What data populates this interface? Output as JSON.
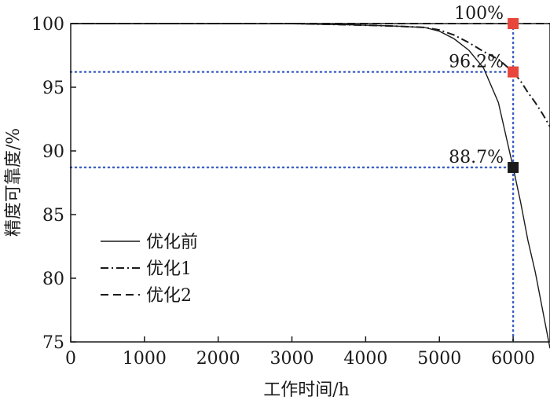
{
  "chart_data": {
    "type": "line",
    "title": "",
    "xlabel": "工作时间/h",
    "ylabel": "精度可靠度/%",
    "xlim": [
      0,
      6500
    ],
    "ylim": [
      75,
      100
    ],
    "x_ticks": [
      "0",
      "1000",
      "2000",
      "3000",
      "4000",
      "5000",
      "6000"
    ],
    "y_ticks": [
      "75",
      "80",
      "85",
      "90",
      "95",
      "100"
    ],
    "grid": false,
    "legend_position": "lower-left",
    "series": [
      {
        "name": "优化前",
        "style": "solid",
        "points": [
          [
            0,
            100
          ],
          [
            2000,
            100
          ],
          [
            3000,
            99.99
          ],
          [
            3800,
            99.9
          ],
          [
            4400,
            99.8
          ],
          [
            4800,
            99.7
          ],
          [
            5000,
            99.4
          ],
          [
            5200,
            98.8
          ],
          [
            5400,
            97.9
          ],
          [
            5600,
            96.5
          ],
          [
            5800,
            93.8
          ],
          [
            6000,
            88.7
          ],
          [
            6100,
            86.0
          ],
          [
            6200,
            83.0
          ],
          [
            6300,
            80.5
          ],
          [
            6400,
            77.5
          ],
          [
            6500,
            74.5
          ]
        ]
      },
      {
        "name": "优化1",
        "style": "dashdot",
        "points": [
          [
            0,
            100
          ],
          [
            3000,
            100
          ],
          [
            3800,
            99.9
          ],
          [
            4400,
            99.8
          ],
          [
            4800,
            99.7
          ],
          [
            5000,
            99.5
          ],
          [
            5200,
            99.1
          ],
          [
            5400,
            98.5
          ],
          [
            5600,
            97.8
          ],
          [
            5800,
            97.2
          ],
          [
            5900,
            96.7
          ],
          [
            6000,
            96.2
          ],
          [
            6100,
            95.5
          ],
          [
            6200,
            94.6
          ],
          [
            6300,
            93.8
          ],
          [
            6400,
            92.9
          ],
          [
            6500,
            91.9
          ]
        ]
      },
      {
        "name": "优化2",
        "style": "dashed",
        "points": [
          [
            0,
            100
          ],
          [
            6500,
            100
          ]
        ]
      }
    ],
    "reference_lines": {
      "vertical_x": 6000,
      "horizontal_y": [
        96.2,
        88.7
      ],
      "color": "#3d5fc4"
    },
    "markers": [
      {
        "x": 6000,
        "y": 100,
        "label": "100%",
        "color": "#e8453c"
      },
      {
        "x": 6000,
        "y": 96.2,
        "label": "96.2%",
        "color": "#e8453c"
      },
      {
        "x": 6000,
        "y": 88.7,
        "label": "88.7%",
        "color": "#1a1a1a"
      }
    ]
  }
}
